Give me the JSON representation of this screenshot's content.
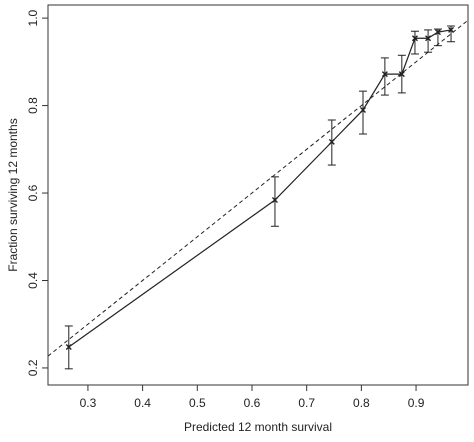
{
  "chart_data": {
    "type": "line",
    "x_label": "Predicted 12 month survival",
    "y_label": "Fraction surviving 12 months",
    "x": [
      0.265,
      0.642,
      0.746,
      0.803,
      0.843,
      0.874,
      0.898,
      0.922,
      0.94,
      0.964
    ],
    "series": [
      {
        "color": "#222222",
        "values": [
          0.248,
          0.584,
          0.717,
          0.79,
          0.872,
          0.872,
          0.954,
          0.954,
          0.968,
          0.973
        ],
        "lower": [
          0.198,
          0.524,
          0.664,
          0.735,
          0.824,
          0.829,
          0.918,
          0.922,
          0.937,
          0.946
        ],
        "upper": [
          0.296,
          0.637,
          0.767,
          0.833,
          0.909,
          0.915,
          0.97,
          0.973,
          0.975,
          0.982
        ]
      }
    ],
    "reference_line": {
      "slope": 1,
      "intercept": 0,
      "dashed": true
    },
    "xlim": [
      0.227,
      0.995
    ],
    "ylim": [
      0.161,
      1.03
    ],
    "xticks": [
      0.3,
      0.4,
      0.5,
      0.6,
      0.7,
      0.8,
      0.9
    ],
    "yticks": [
      0.2,
      0.4,
      0.6,
      0.8,
      {
        "value": 1,
        "label": "1.0"
      }
    ]
  }
}
